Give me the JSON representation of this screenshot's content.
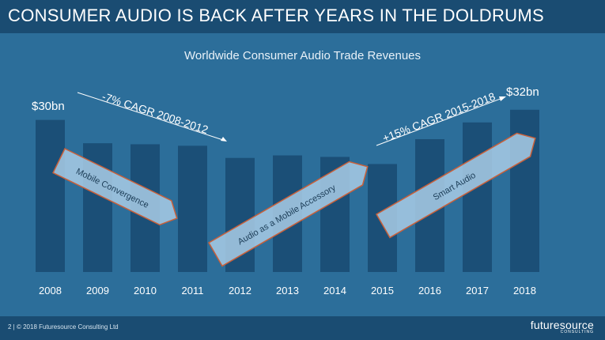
{
  "header": {
    "title": "CONSUMER AUDIO IS BACK AFTER YEARS IN THE DOLDRUMS"
  },
  "chart_data": {
    "type": "bar",
    "title": "Worldwide Consumer Audio Trade Revenues",
    "categories": [
      "2008",
      "2009",
      "2010",
      "2011",
      "2012",
      "2013",
      "2014",
      "2015",
      "2016",
      "2017",
      "2018"
    ],
    "values": [
      30,
      25.4,
      25.2,
      24.9,
      22.5,
      23.0,
      22.7,
      21.3,
      26.2,
      29.5,
      32
    ],
    "ylim": [
      0,
      34
    ],
    "bar_color": "#1b4f77",
    "value_labels": {
      "first": "$30bn",
      "last": "$32bn"
    },
    "annotations": {
      "cagr_down": "-7% CAGR 2008-2012",
      "cagr_up": "+15% CAGR 2015-2018",
      "arrow1": "Mobile Convergence",
      "arrow2": "Audio as a Mobile Accessory",
      "arrow3": "Smart Audio"
    }
  },
  "footer": {
    "text": "2  |  © 2018 Futuresource Consulting Ltd"
  },
  "logo": {
    "main": "futuresource",
    "sub": "CONSULTING"
  },
  "colors": {
    "background": "#2c6e9a",
    "header": "#1a4c72",
    "arrow_fill": "#a9cde6",
    "arrow_stroke": "#c9603a"
  }
}
